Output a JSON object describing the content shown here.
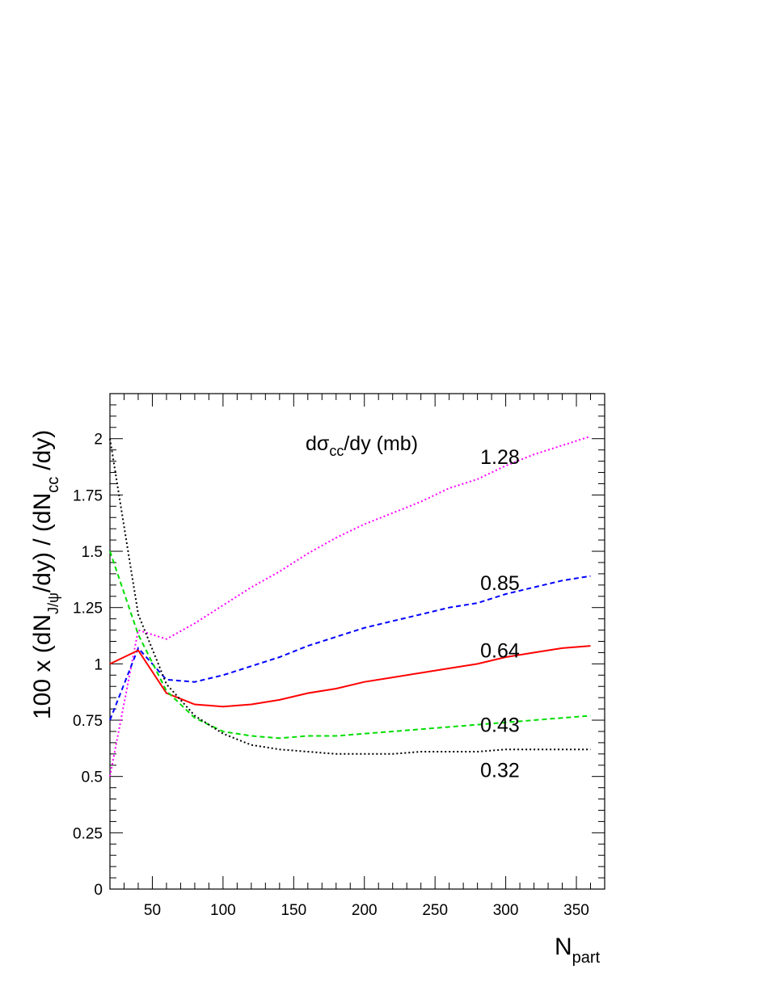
{
  "chart_data": {
    "type": "line",
    "title": "",
    "xlabel": "N",
    "xlabel_sub": "part",
    "ylabel": "100 x (dN",
    "ylabel_sub1": "J/ψ",
    "ylabel_mid": "/dy) / (dN",
    "ylabel_sub2": "cc",
    "ylabel_end": "/dy)",
    "xlim": [
      20,
      370
    ],
    "ylim": [
      0,
      2.2
    ],
    "xticks": [
      50,
      100,
      150,
      200,
      250,
      300,
      350
    ],
    "xtick_labels": [
      "50",
      "100",
      "150",
      "200",
      "250",
      "300",
      "350"
    ],
    "yticks": [
      0,
      0.25,
      0.5,
      0.75,
      1,
      1.25,
      1.5,
      1.75,
      2
    ],
    "ytick_labels": [
      "0",
      "0.25",
      "0.5",
      "0.75",
      "1",
      "1.25",
      "1.5",
      "1.75",
      "2"
    ],
    "legend_title": "dσ",
    "legend_title_sub": "cc",
    "legend_title_end": "/dy (mb)",
    "grid": false,
    "series": [
      {
        "name": "1.28",
        "color": "#ff00ff",
        "dash": "dotted",
        "x": [
          20,
          40,
          60,
          80,
          100,
          120,
          140,
          160,
          180,
          200,
          220,
          240,
          260,
          280,
          300,
          320,
          340,
          360
        ],
        "y": [
          0.5,
          1.15,
          1.11,
          1.18,
          1.26,
          1.34,
          1.41,
          1.49,
          1.56,
          1.62,
          1.67,
          1.72,
          1.78,
          1.82,
          1.88,
          1.93,
          1.97,
          2.01
        ]
      },
      {
        "name": "0.85",
        "color": "#0000ff",
        "dash": "dashed",
        "x": [
          20,
          40,
          60,
          80,
          100,
          120,
          140,
          160,
          180,
          200,
          220,
          240,
          260,
          280,
          300,
          320,
          340,
          360
        ],
        "y": [
          0.75,
          1.07,
          0.93,
          0.92,
          0.95,
          0.99,
          1.03,
          1.08,
          1.12,
          1.16,
          1.19,
          1.22,
          1.25,
          1.27,
          1.31,
          1.34,
          1.37,
          1.39
        ]
      },
      {
        "name": "0.64",
        "color": "#ff0000",
        "dash": "solid",
        "x": [
          20,
          40,
          60,
          80,
          100,
          120,
          140,
          160,
          180,
          200,
          220,
          240,
          260,
          280,
          300,
          320,
          340,
          360
        ],
        "y": [
          1.0,
          1.06,
          0.87,
          0.82,
          0.81,
          0.82,
          0.84,
          0.87,
          0.89,
          0.92,
          0.94,
          0.96,
          0.98,
          1.0,
          1.03,
          1.05,
          1.07,
          1.08
        ]
      },
      {
        "name": "0.43",
        "color": "#00dd00",
        "dash": "dashed",
        "x": [
          20,
          40,
          60,
          80,
          100,
          120,
          140,
          160,
          180,
          200,
          220,
          240,
          260,
          280,
          300,
          320,
          340,
          360
        ],
        "y": [
          1.5,
          1.13,
          0.88,
          0.76,
          0.7,
          0.68,
          0.67,
          0.68,
          0.68,
          0.69,
          0.7,
          0.71,
          0.72,
          0.73,
          0.74,
          0.75,
          0.76,
          0.77
        ]
      },
      {
        "name": "0.32",
        "color": "#000000",
        "dash": "dotted",
        "x": [
          20,
          40,
          60,
          80,
          100,
          120,
          140,
          160,
          180,
          200,
          220,
          240,
          260,
          280,
          300,
          320,
          340,
          360
        ],
        "y": [
          2.0,
          1.22,
          0.91,
          0.77,
          0.69,
          0.64,
          0.62,
          0.61,
          0.6,
          0.6,
          0.6,
          0.61,
          0.61,
          0.61,
          0.62,
          0.62,
          0.62,
          0.62
        ]
      }
    ],
    "annotations": [
      "1.28",
      "0.85",
      "0.64",
      "0.43",
      "0.32"
    ]
  }
}
